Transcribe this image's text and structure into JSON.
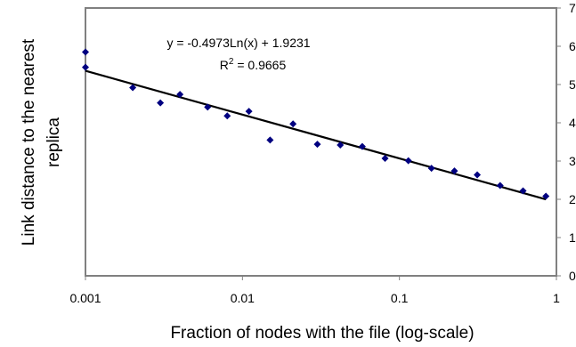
{
  "chart_data": {
    "type": "scatter",
    "title": "",
    "xlabel": "Fraction of nodes with the file (log-scale)",
    "ylabel_lines": [
      "Link distance to the nearest",
      "replica"
    ],
    "x_scale": "log",
    "xlim": [
      0.001,
      1
    ],
    "ylim": [
      0,
      7
    ],
    "x_ticks": [
      0.001,
      0.01,
      0.1,
      1
    ],
    "x_tick_labels": [
      "0.001",
      "0.01",
      "0.1",
      "1"
    ],
    "y_ticks": [
      0,
      1,
      2,
      3,
      4,
      5,
      6,
      7
    ],
    "y_tick_labels": [
      "0",
      "1",
      "2",
      "3",
      "4",
      "5",
      "6",
      "7"
    ],
    "y_axis_side": "right",
    "grid": false,
    "legend": "none",
    "marker_color": "#000080",
    "points": [
      {
        "x": 0.001,
        "y": 5.85
      },
      {
        "x": 0.001,
        "y": 5.45
      },
      {
        "x": 0.002,
        "y": 4.92
      },
      {
        "x": 0.003,
        "y": 4.52
      },
      {
        "x": 0.004,
        "y": 4.74
      },
      {
        "x": 0.006,
        "y": 4.41
      },
      {
        "x": 0.008,
        "y": 4.18
      },
      {
        "x": 0.011,
        "y": 4.3
      },
      {
        "x": 0.015,
        "y": 3.55
      },
      {
        "x": 0.021,
        "y": 3.97
      },
      {
        "x": 0.03,
        "y": 3.44
      },
      {
        "x": 0.042,
        "y": 3.42
      },
      {
        "x": 0.058,
        "y": 3.38
      },
      {
        "x": 0.081,
        "y": 3.07
      },
      {
        "x": 0.114,
        "y": 3.01
      },
      {
        "x": 0.16,
        "y": 2.81
      },
      {
        "x": 0.224,
        "y": 2.74
      },
      {
        "x": 0.313,
        "y": 2.64
      },
      {
        "x": 0.438,
        "y": 2.36
      },
      {
        "x": 0.613,
        "y": 2.22
      },
      {
        "x": 0.857,
        "y": 2.08
      }
    ],
    "trendline": {
      "type": "logarithmic",
      "a": -0.4973,
      "b": 1.9231,
      "x_range": [
        0.001,
        0.857
      ],
      "color": "#000000",
      "equation_label": "y = -0.4973Ln(x) + 1.9231",
      "r2_prefix": "R",
      "r2_sup": "2",
      "r2_value": " = 0.9665"
    }
  }
}
